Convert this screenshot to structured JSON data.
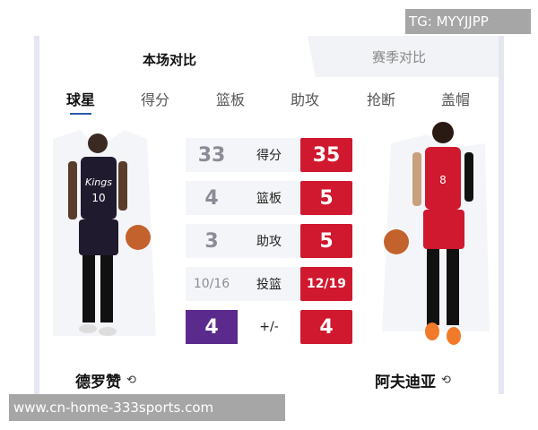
{
  "watermarks": {
    "top": "TG: MYYJJPP",
    "bottom": "www.cn-home-333sports.com"
  },
  "tabs": [
    {
      "label": "本场对比",
      "active": true
    },
    {
      "label": "赛季对比",
      "active": false
    }
  ],
  "subtabs": [
    {
      "label": "球星",
      "active": true
    },
    {
      "label": "得分"
    },
    {
      "label": "篮板"
    },
    {
      "label": "助攻"
    },
    {
      "label": "抢断"
    },
    {
      "label": "盖帽"
    }
  ],
  "players": {
    "left": {
      "name": "德罗赞",
      "jersey_text": "Kings",
      "number": "10",
      "color": "#1f1a2e"
    },
    "right": {
      "name": "阿夫迪亚",
      "number": "8",
      "color": "#d0182f"
    }
  },
  "stats": [
    {
      "label": "得分",
      "left": "33",
      "right": "35"
    },
    {
      "label": "篮板",
      "left": "4",
      "right": "5"
    },
    {
      "label": "助攻",
      "left": "3",
      "right": "5"
    },
    {
      "label": "投篮",
      "left": "10/16",
      "right": "12/19"
    },
    {
      "label": "+/-",
      "left": "4",
      "right": "4"
    }
  ],
  "colors": {
    "winner": "#d0182f",
    "left_highlight": "#5a2a8c",
    "underline": "#2a5aa8"
  },
  "icons": {
    "swap": "swap-player-icon"
  }
}
